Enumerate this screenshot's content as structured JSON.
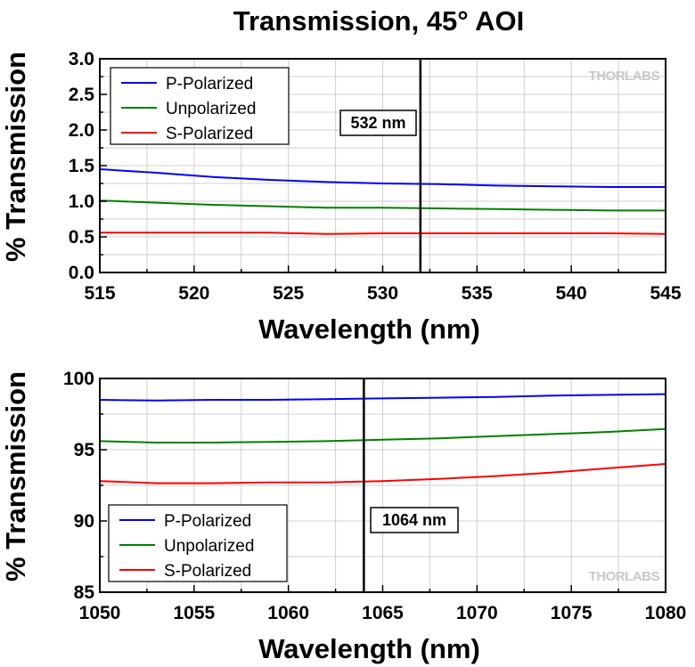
{
  "title": "Transmission, 45° AOI",
  "logo": "THORLABS",
  "colors": {
    "p": "#0000ff",
    "u": "#008000",
    "s": "#ff0000",
    "grid": "#cfcfcf"
  },
  "chart_data": [
    {
      "type": "line",
      "xlabel": "Wavelength (nm)",
      "ylabel": "% Transmission",
      "xlim": [
        515,
        545
      ],
      "ylim": [
        0,
        3
      ],
      "xticks": [
        515,
        520,
        525,
        530,
        535,
        540,
        545
      ],
      "yticks": [
        0,
        0.5,
        1,
        1.5,
        2,
        2.5,
        3
      ],
      "ytick_labels": [
        "0.0",
        "0.5",
        "1.0",
        "1.5",
        "2.0",
        "2.5",
        "3.0"
      ],
      "grid": true,
      "legend_position": "top-left",
      "annotation": {
        "text": "532 nm",
        "x": 532
      },
      "series": [
        {
          "name": "P-Polarized",
          "color": "#0000ff",
          "x": [
            515,
            518,
            521,
            524,
            527,
            530,
            533,
            536,
            539,
            542,
            545
          ],
          "values": [
            1.45,
            1.4,
            1.34,
            1.3,
            1.27,
            1.25,
            1.24,
            1.22,
            1.21,
            1.2,
            1.2
          ]
        },
        {
          "name": "Unpolarized",
          "color": "#008000",
          "x": [
            515,
            518,
            521,
            524,
            527,
            530,
            533,
            536,
            539,
            542,
            545
          ],
          "values": [
            1.01,
            0.98,
            0.95,
            0.93,
            0.91,
            0.91,
            0.9,
            0.89,
            0.88,
            0.87,
            0.87
          ]
        },
        {
          "name": "S-Polarized",
          "color": "#ff0000",
          "x": [
            515,
            518,
            521,
            524,
            527,
            530,
            533,
            536,
            539,
            542,
            545
          ],
          "values": [
            0.56,
            0.56,
            0.56,
            0.56,
            0.54,
            0.55,
            0.55,
            0.55,
            0.55,
            0.55,
            0.54
          ]
        }
      ]
    },
    {
      "type": "line",
      "xlabel": "Wavelength (nm)",
      "ylabel": "% Transmission",
      "xlim": [
        1050,
        1080
      ],
      "ylim": [
        85,
        100
      ],
      "xticks": [
        1050,
        1055,
        1060,
        1065,
        1070,
        1075,
        1080
      ],
      "yticks": [
        85,
        90,
        95,
        100
      ],
      "ytick_labels": [
        "85",
        "90",
        "95",
        "100"
      ],
      "grid": true,
      "legend_position": "bottom-left",
      "annotation": {
        "text": "1064 nm",
        "x": 1064
      },
      "series": [
        {
          "name": "P-Polarized",
          "color": "#0000ff",
          "x": [
            1050,
            1053,
            1056,
            1059,
            1062,
            1065,
            1068,
            1071,
            1074,
            1077,
            1080
          ],
          "values": [
            98.5,
            98.45,
            98.5,
            98.5,
            98.55,
            98.6,
            98.65,
            98.7,
            98.8,
            98.85,
            98.9
          ]
        },
        {
          "name": "Unpolarized",
          "color": "#008000",
          "x": [
            1050,
            1053,
            1056,
            1059,
            1062,
            1065,
            1068,
            1071,
            1074,
            1077,
            1080
          ],
          "values": [
            95.6,
            95.5,
            95.5,
            95.55,
            95.6,
            95.7,
            95.8,
            95.95,
            96.1,
            96.25,
            96.45
          ]
        },
        {
          "name": "S-Polarized",
          "color": "#ff0000",
          "x": [
            1050,
            1053,
            1056,
            1059,
            1062,
            1065,
            1068,
            1071,
            1074,
            1077,
            1080
          ],
          "values": [
            92.8,
            92.65,
            92.65,
            92.7,
            92.7,
            92.8,
            92.95,
            93.15,
            93.4,
            93.7,
            94.0
          ]
        }
      ]
    }
  ]
}
